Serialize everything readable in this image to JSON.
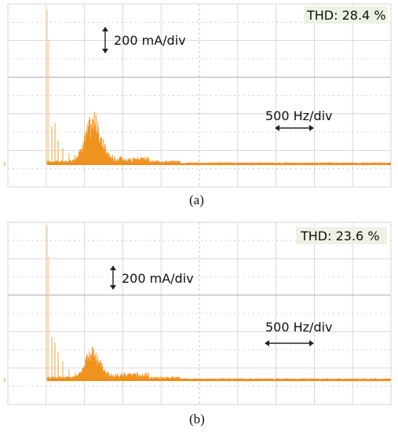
{
  "panels": [
    {
      "id": "a",
      "thd": "THD: 28.4 %",
      "amp_scale": "200 mA/div",
      "freq_scale": "500 Hz/div",
      "caption": "(a)"
    },
    {
      "id": "b",
      "thd": "THD: 23.6 %",
      "amp_scale": "200 mA/div",
      "freq_scale": "500 Hz/div",
      "caption": "(b)"
    }
  ],
  "colors": {
    "trace": "#f0921e",
    "grid": "#cfcfcf",
    "thd_box": "#eef2e4"
  }
}
